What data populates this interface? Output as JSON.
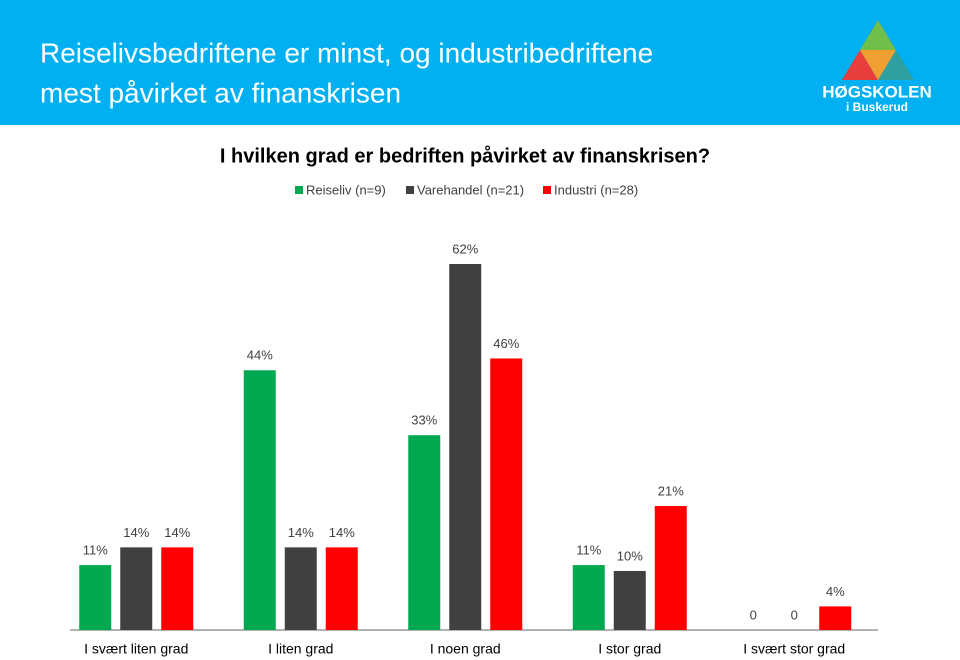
{
  "header": {
    "title_lines": [
      "Reiselivsbedriftene er minst, og industribedriftene",
      "mest påvirket av finanskrisen"
    ],
    "logo_name": "HØGSKOLEN",
    "logo_subtitle": "i Buskerud"
  },
  "chart_data": {
    "type": "bar",
    "title": "I hvilken grad er bedriften påvirket av finanskrisen?",
    "categories": [
      "I svært liten grad",
      "I liten grad",
      "I noen grad",
      "I stor grad",
      "I svært stor grad"
    ],
    "series": [
      {
        "name": "Reiseliv (n=9)",
        "color": "#00a850",
        "values": [
          11,
          44,
          33,
          11,
          0
        ],
        "value_labels": [
          "11%",
          "44%",
          "33%",
          "11%",
          "0"
        ]
      },
      {
        "name": "Varehandel (n=21)",
        "color": "#404040",
        "values": [
          14,
          14,
          62,
          10,
          0
        ],
        "value_labels": [
          "14%",
          "14%",
          "62%",
          "10%",
          "0"
        ]
      },
      {
        "name": "Industri (n=28)",
        "color": "#ff0000",
        "values": [
          14,
          14,
          46,
          21,
          4
        ],
        "value_labels": [
          "14%",
          "14%",
          "46%",
          "21%",
          "4%"
        ]
      }
    ]
  }
}
